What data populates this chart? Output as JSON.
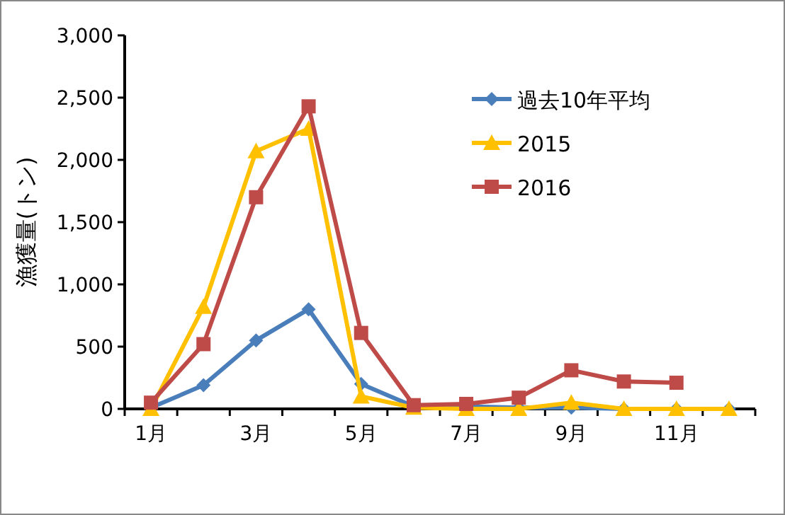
{
  "chart_data": {
    "type": "line",
    "ylabel": "漁獲量(トン)",
    "categories": [
      "1月",
      null,
      "3月",
      null,
      "5月",
      null,
      "7月",
      null,
      "9月",
      null,
      "11月",
      null
    ],
    "ylim": [
      0,
      3000
    ],
    "yticks": [
      {
        "value": 0,
        "label": "0"
      },
      {
        "value": 500,
        "label": "500"
      },
      {
        "value": 1000,
        "label": "1,000"
      },
      {
        "value": 1500,
        "label": "1,500"
      },
      {
        "value": 2000,
        "label": "2,000"
      },
      {
        "value": 2500,
        "label": "2,500"
      },
      {
        "value": 3000,
        "label": "3,000"
      }
    ],
    "legend": "top right",
    "grid": false,
    "series": [
      {
        "name": "過去10年平均",
        "color": "#4a7ebb",
        "marker": "diamond",
        "values": [
          10,
          190,
          550,
          800,
          200,
          20,
          20,
          10,
          10,
          0,
          0,
          0
        ]
      },
      {
        "name": "2015",
        "color": "#ffc000",
        "marker": "triangle",
        "values": [
          0,
          820,
          2070,
          2250,
          100,
          10,
          0,
          0,
          50,
          0,
          0,
          0
        ]
      },
      {
        "name": "2016",
        "color": "#be4b48",
        "marker": "square",
        "values": [
          50,
          520,
          1700,
          2430,
          610,
          30,
          40,
          90,
          310,
          220,
          210,
          null
        ]
      }
    ]
  }
}
